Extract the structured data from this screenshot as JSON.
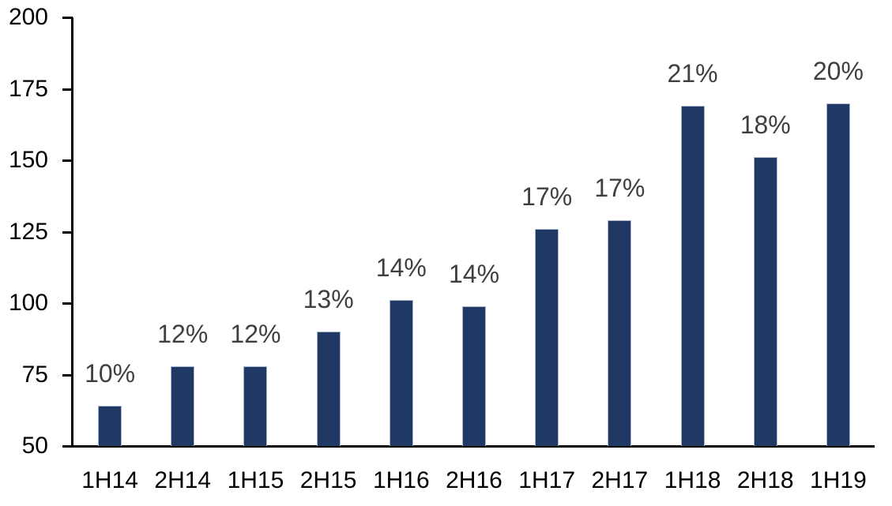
{
  "chart_data": {
    "type": "bar",
    "categories": [
      "1H14",
      "2H14",
      "1H15",
      "2H15",
      "1H16",
      "2H16",
      "1H17",
      "2H17",
      "1H18",
      "2H18",
      "1H19"
    ],
    "values": [
      64,
      78,
      78,
      90,
      101,
      99,
      126,
      129,
      169,
      151,
      170
    ],
    "bar_labels": [
      "10%",
      "12%",
      "12%",
      "13%",
      "14%",
      "14%",
      "17%",
      "17%",
      "21%",
      "18%",
      "20%"
    ],
    "title": "",
    "xlabel": "",
    "ylabel": "",
    "ylim": [
      50,
      200
    ],
    "yticks": [
      50,
      75,
      100,
      125,
      150,
      175,
      200
    ],
    "grid": false,
    "legend": false,
    "colors": {
      "bar_fill": "#1F3864",
      "bar_border": "#A8B5CB",
      "data_label": "#3f3f3f",
      "axis": "#000000",
      "tick_label": "#000000",
      "background": "#ffffff"
    }
  }
}
